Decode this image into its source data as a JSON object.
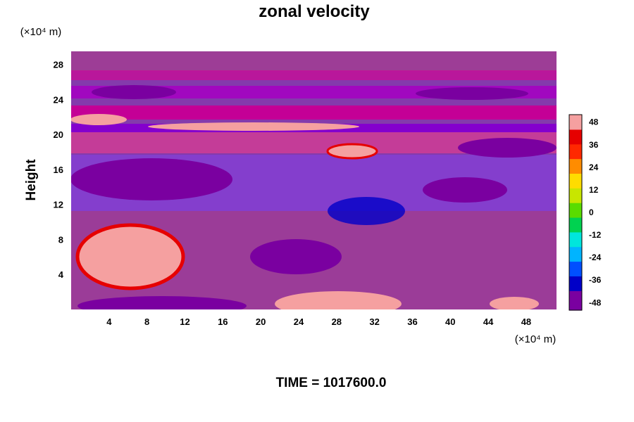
{
  "chart_data": {
    "type": "heatmap",
    "title": "zonal velocity",
    "xlabel": "",
    "ylabel": "Height",
    "x_unit": "(×10⁴ m)",
    "y_unit": "(×10⁴ m)",
    "xlim": [
      0,
      51.2
    ],
    "ylim": [
      0,
      29.5
    ],
    "xticks": [
      4,
      8,
      12,
      16,
      20,
      24,
      28,
      32,
      36,
      40,
      44,
      48
    ],
    "yticks": [
      4,
      8,
      12,
      16,
      20,
      24,
      28
    ],
    "colorbar": {
      "ticks": [
        48,
        36,
        24,
        12,
        0,
        -12,
        -24,
        -36,
        -48
      ],
      "range": [
        -52,
        52
      ],
      "colors_low_to_high": [
        "#7a00a0",
        "#0000c8",
        "#0050ff",
        "#00b4ff",
        "#00e6dc",
        "#00d250",
        "#5adc00",
        "#c8e600",
        "#ffdc00",
        "#ff8c00",
        "#ff2800",
        "#e60000",
        "#f5a0a0"
      ]
    },
    "field_note_categories": [
      "westward jet band near 24",
      "eastward jet band near 22",
      "strong eastward region lower left",
      "strong westward regions mid-levels"
    ],
    "annotation": "TIME = 1017600.0"
  }
}
